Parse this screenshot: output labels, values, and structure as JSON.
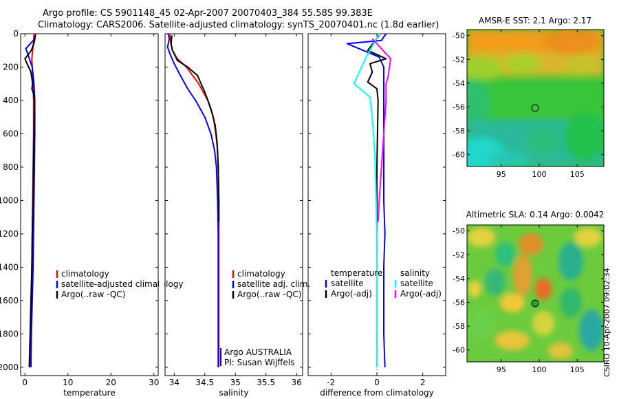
{
  "title_line1": "Argo profile: CS 5901148_45 02-Apr-2007 20070403_384 55.58S 99.383E",
  "title_line2": "Climatology: CARS2006. Satellite-adjusted climatology: synTS_20070401.nc (1.8d earlier)",
  "credit": "CSIRO 10-Apr-2007 09:02:34",
  "colors": {
    "climatology": "#ff0000",
    "satellite": "#0000ff",
    "argo": "#000000",
    "sal_satellite": "#00ffff",
    "sal_argo": "#ff00ff"
  },
  "chart_data": [
    {
      "type": "line",
      "title": "",
      "xlabel": "temperature",
      "ylabel": "",
      "xlim": [
        -1,
        31
      ],
      "ylim": [
        2050,
        0
      ],
      "xticks": [
        0,
        10,
        20,
        30
      ],
      "yticks": [
        0,
        200,
        400,
        600,
        800,
        1000,
        1200,
        1400,
        1600,
        1800,
        2000
      ],
      "series": [
        {
          "name": "climatology",
          "color": "#ff0000",
          "points": [
            [
              2.1,
              0
            ],
            [
              2.0,
              50
            ],
            [
              1.8,
              100
            ],
            [
              1.6,
              150
            ],
            [
              1.7,
              200
            ],
            [
              1.9,
              300
            ],
            [
              2.0,
              400
            ],
            [
              2.0,
              600
            ],
            [
              1.9,
              800
            ],
            [
              1.8,
              1000
            ],
            [
              1.7,
              1200
            ],
            [
              1.6,
              1400
            ],
            [
              1.5,
              1600
            ],
            [
              1.4,
              1800
            ],
            [
              1.3,
              2000
            ]
          ]
        },
        {
          "name": "satellite-adjusted climatology",
          "color": "#0000ff",
          "points": [
            [
              2.5,
              0
            ],
            [
              2.3,
              30
            ],
            [
              0.2,
              90
            ],
            [
              0.9,
              140
            ],
            [
              1.7,
              200
            ],
            [
              2.1,
              300
            ],
            [
              2.3,
              400
            ],
            [
              2.3,
              600
            ],
            [
              2.2,
              800
            ],
            [
              2.1,
              1000
            ],
            [
              2.0,
              1200
            ],
            [
              1.9,
              1400
            ],
            [
              1.7,
              1600
            ],
            [
              1.5,
              1800
            ],
            [
              1.4,
              2000
            ]
          ]
        },
        {
          "name": "Argo(..raw -QC)",
          "color": "#000000",
          "points": [
            [
              2.4,
              10
            ],
            [
              2.2,
              50
            ],
            [
              1.5,
              100
            ],
            [
              0.0,
              150
            ],
            [
              0.5,
              180
            ],
            [
              1.4,
              230
            ],
            [
              1.8,
              300
            ],
            [
              1.6,
              330
            ],
            [
              2.0,
              360
            ],
            [
              2.2,
              400
            ],
            [
              2.1,
              600
            ],
            [
              2.0,
              800
            ],
            [
              1.9,
              1000
            ],
            [
              1.7,
              1200
            ],
            [
              1.6,
              1400
            ],
            [
              1.4,
              1600
            ],
            [
              1.2,
              1800
            ],
            [
              1.0,
              2000
            ]
          ]
        }
      ],
      "legend": {
        "position": "bottom-left",
        "entries": [
          "climatology",
          "satellite-adjusted climatology",
          "Argo(..raw -QC)"
        ]
      }
    },
    {
      "type": "line",
      "title": "",
      "xlabel": "salinity",
      "ylabel": "",
      "xlim": [
        33.85,
        36.1
      ],
      "ylim": [
        2050,
        0
      ],
      "xticks": [
        34,
        34.5,
        35,
        35.5,
        36
      ],
      "xtick_labels": [
        "34",
        "34.5",
        "35",
        "35.5",
        "36"
      ],
      "series": [
        {
          "name": "climatology",
          "color": "#ff0000",
          "points": [
            [
              33.93,
              0
            ],
            [
              33.94,
              50
            ],
            [
              33.97,
              100
            ],
            [
              34.05,
              150
            ],
            [
              34.2,
              200
            ],
            [
              34.4,
              300
            ],
            [
              34.55,
              400
            ],
            [
              34.64,
              500
            ],
            [
              34.68,
              600
            ],
            [
              34.71,
              700
            ],
            [
              34.72,
              800
            ],
            [
              34.73,
              1000
            ],
            [
              34.73,
              1200
            ],
            [
              34.73,
              2000
            ]
          ]
        },
        {
          "name": "satellite adj. clim.",
          "color": "#0000ff",
          "points": [
            [
              33.9,
              0
            ],
            [
              33.92,
              30
            ],
            [
              33.89,
              80
            ],
            [
              33.93,
              120
            ],
            [
              34.0,
              180
            ],
            [
              34.1,
              250
            ],
            [
              34.22,
              330
            ],
            [
              34.35,
              400
            ],
            [
              34.5,
              500
            ],
            [
              34.6,
              600
            ],
            [
              34.66,
              700
            ],
            [
              34.69,
              800
            ],
            [
              34.71,
              1000
            ],
            [
              34.72,
              1200
            ],
            [
              34.72,
              2000
            ]
          ]
        },
        {
          "name": "Argo(..raw -QC)",
          "color": "#000000",
          "points": [
            [
              33.96,
              10
            ],
            [
              33.95,
              60
            ],
            [
              33.97,
              100
            ],
            [
              34.05,
              160
            ],
            [
              34.22,
              200
            ],
            [
              34.38,
              250
            ],
            [
              34.5,
              350
            ],
            [
              34.6,
              450
            ],
            [
              34.67,
              550
            ],
            [
              34.7,
              650
            ],
            [
              34.72,
              800
            ],
            [
              34.73,
              1000
            ],
            [
              34.73,
              1130
            ]
          ]
        }
      ],
      "legend": {
        "position": "bottom-right",
        "entries": [
          "climatology",
          "satellite adj. clim.",
          "Argo(..raw -QC)"
        ]
      },
      "annotations": [
        "Argo AUSTRALIA",
        "PI: Susan Wijffels"
      ]
    },
    {
      "type": "line",
      "title": "",
      "xlabel": "difference from climatology",
      "ylabel": "",
      "xlim": [
        -3,
        3
      ],
      "ylim": [
        2050,
        0
      ],
      "xticks": [
        -2,
        0,
        2
      ],
      "xtick_labels": [
        "-2",
        "0",
        "2"
      ],
      "series": [
        {
          "name": "temperature satellite",
          "color": "#0000ff",
          "points": [
            [
              0.4,
              0
            ],
            [
              0.2,
              40
            ],
            [
              -1.3,
              60
            ],
            [
              -0.6,
              100
            ],
            [
              0.1,
              140
            ],
            [
              0.3,
              200
            ],
            [
              0.3,
              300
            ],
            [
              0.3,
              400
            ],
            [
              0.3,
              600
            ],
            [
              0.3,
              800
            ],
            [
              0.3,
              1000
            ],
            [
              0.35,
              1200
            ],
            [
              0.3,
              1400
            ],
            [
              0.3,
              1600
            ],
            [
              0.3,
              1800
            ],
            [
              0.35,
              2000
            ]
          ]
        },
        {
          "name": "temperature Argo(-adj)",
          "color": "#000000",
          "points": [
            [
              0.1,
              10
            ],
            [
              -0.4,
              100
            ],
            [
              0.4,
              150
            ],
            [
              -0.3,
              180
            ],
            [
              -0.2,
              230
            ],
            [
              -0.4,
              290
            ],
            [
              0.0,
              330
            ],
            [
              0.05,
              400
            ],
            [
              0.0,
              800
            ],
            [
              0.0,
              1400
            ],
            [
              0.0,
              2000
            ]
          ]
        },
        {
          "name": "salinity satellite",
          "color": "#00ffff",
          "points": [
            [
              0.1,
              0
            ],
            [
              -0.5,
              150
            ],
            [
              -1.0,
              300
            ],
            [
              -0.3,
              380
            ],
            [
              -0.2,
              500
            ],
            [
              -0.1,
              700
            ],
            [
              -0.05,
              900
            ],
            [
              0.0,
              1200
            ],
            [
              0.0,
              2000
            ]
          ]
        },
        {
          "name": "salinity Argo(-adj)",
          "color": "#ff00ff",
          "points": [
            [
              -0.2,
              30
            ],
            [
              0.6,
              150
            ],
            [
              0.5,
              250
            ],
            [
              0.4,
              300
            ],
            [
              0.4,
              400
            ],
            [
              0.3,
              600
            ],
            [
              0.2,
              800
            ],
            [
              0.1,
              1000
            ],
            [
              0.05,
              1130
            ]
          ]
        }
      ],
      "legend_left": {
        "header": "temperature",
        "entries": [
          "satellite",
          "Argo(-adj)"
        ]
      },
      "legend_right": {
        "header": "salinity",
        "entries": [
          "satellite",
          "Argo(-adj)"
        ]
      }
    },
    {
      "type": "heatmap",
      "title": "AMSR-E SST: 2.1 Argo: 2.17",
      "xlim": [
        90.5,
        108.5
      ],
      "ylim": [
        -61,
        -49.5
      ],
      "xticks": [
        95,
        100,
        105
      ],
      "yticks": [
        -50,
        -52,
        -54,
        -56,
        -58,
        -60
      ],
      "marker": {
        "lon": 99.383,
        "lat": -55.58,
        "style": "hollow circle"
      }
    },
    {
      "type": "heatmap",
      "title": "Altimetric SLA: 0.14 Argo: 0.0042",
      "xlim": [
        90.5,
        108.5
      ],
      "ylim": [
        -61,
        -49.5
      ],
      "xticks": [
        95,
        100,
        105
      ],
      "yticks": [
        -50,
        -52,
        -54,
        -56,
        -58,
        -60
      ],
      "marker": {
        "lon": 99.383,
        "lat": -55.58,
        "style": "filled green circle"
      }
    }
  ]
}
